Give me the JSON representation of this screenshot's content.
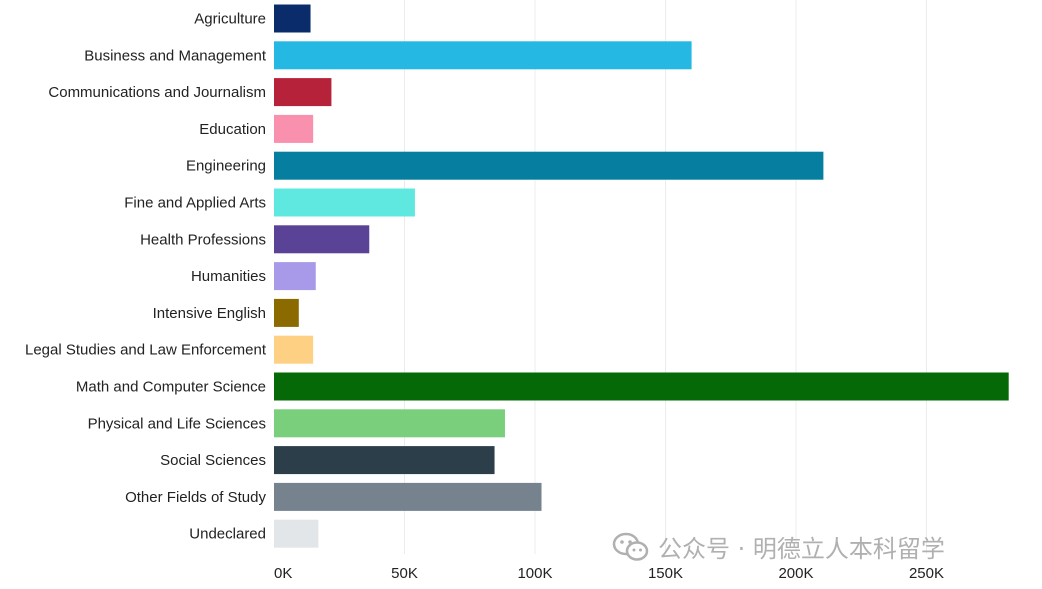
{
  "chart_data": {
    "type": "bar",
    "orientation": "horizontal",
    "categories": [
      "Agriculture",
      "Business and Management",
      "Communications and Journalism",
      "Education",
      "Engineering",
      "Fine and Applied Arts",
      "Health Professions",
      "Humanities",
      "Intensive English",
      "Legal Studies and Law Enforcement",
      "Math and Computer Science",
      "Physical and Life Sciences",
      "Social Sciences",
      "Other Fields of Study",
      "Undeclared"
    ],
    "values": [
      14000,
      160000,
      22000,
      15000,
      210500,
      54000,
      36500,
      16000,
      9500,
      15000,
      281500,
      88500,
      84500,
      102500,
      17000
    ],
    "colors": [
      "#0b2c6b",
      "#25b8e2",
      "#b6223a",
      "#f890ae",
      "#067e9f",
      "#5ee8df",
      "#5a4296",
      "#a89ae8",
      "#8b6a00",
      "#fdd084",
      "#066907",
      "#79cf7c",
      "#2c3e4a",
      "#76838f",
      "#e2e6e8"
    ],
    "xlim": [
      0,
      282000
    ],
    "xticks": [
      0,
      50000,
      100000,
      150000,
      200000,
      250000
    ],
    "xtick_labels": [
      "0K",
      "50K",
      "100K",
      "150K",
      "200K",
      "250K"
    ],
    "grid": true,
    "title": "",
    "xlabel": "",
    "ylabel": ""
  },
  "watermark": {
    "text": "公众号 · 明德立人本科留学",
    "icon": "wechat-icon"
  }
}
